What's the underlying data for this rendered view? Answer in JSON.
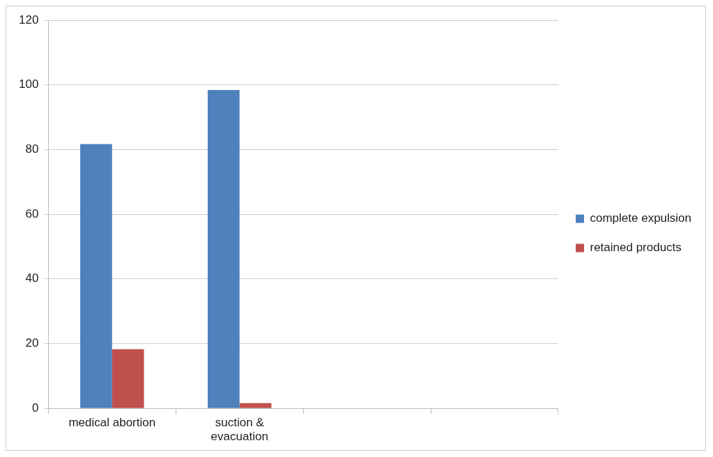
{
  "chart_data": {
    "type": "bar",
    "categories": [
      "medical abortion",
      "suction & evacuation",
      null,
      null
    ],
    "series": [
      {
        "name": "complete expulsion",
        "color": "#4f81bd",
        "values": [
          81.7,
          98.4,
          null,
          null
        ]
      },
      {
        "name": "retained products",
        "color": "#c0504d",
        "values": [
          18.3,
          1.6,
          null,
          null
        ]
      }
    ],
    "ylim": [
      0,
      120
    ],
    "yticks": [
      0,
      20,
      40,
      60,
      80,
      100,
      120
    ],
    "grid": "y",
    "legend": "right"
  }
}
